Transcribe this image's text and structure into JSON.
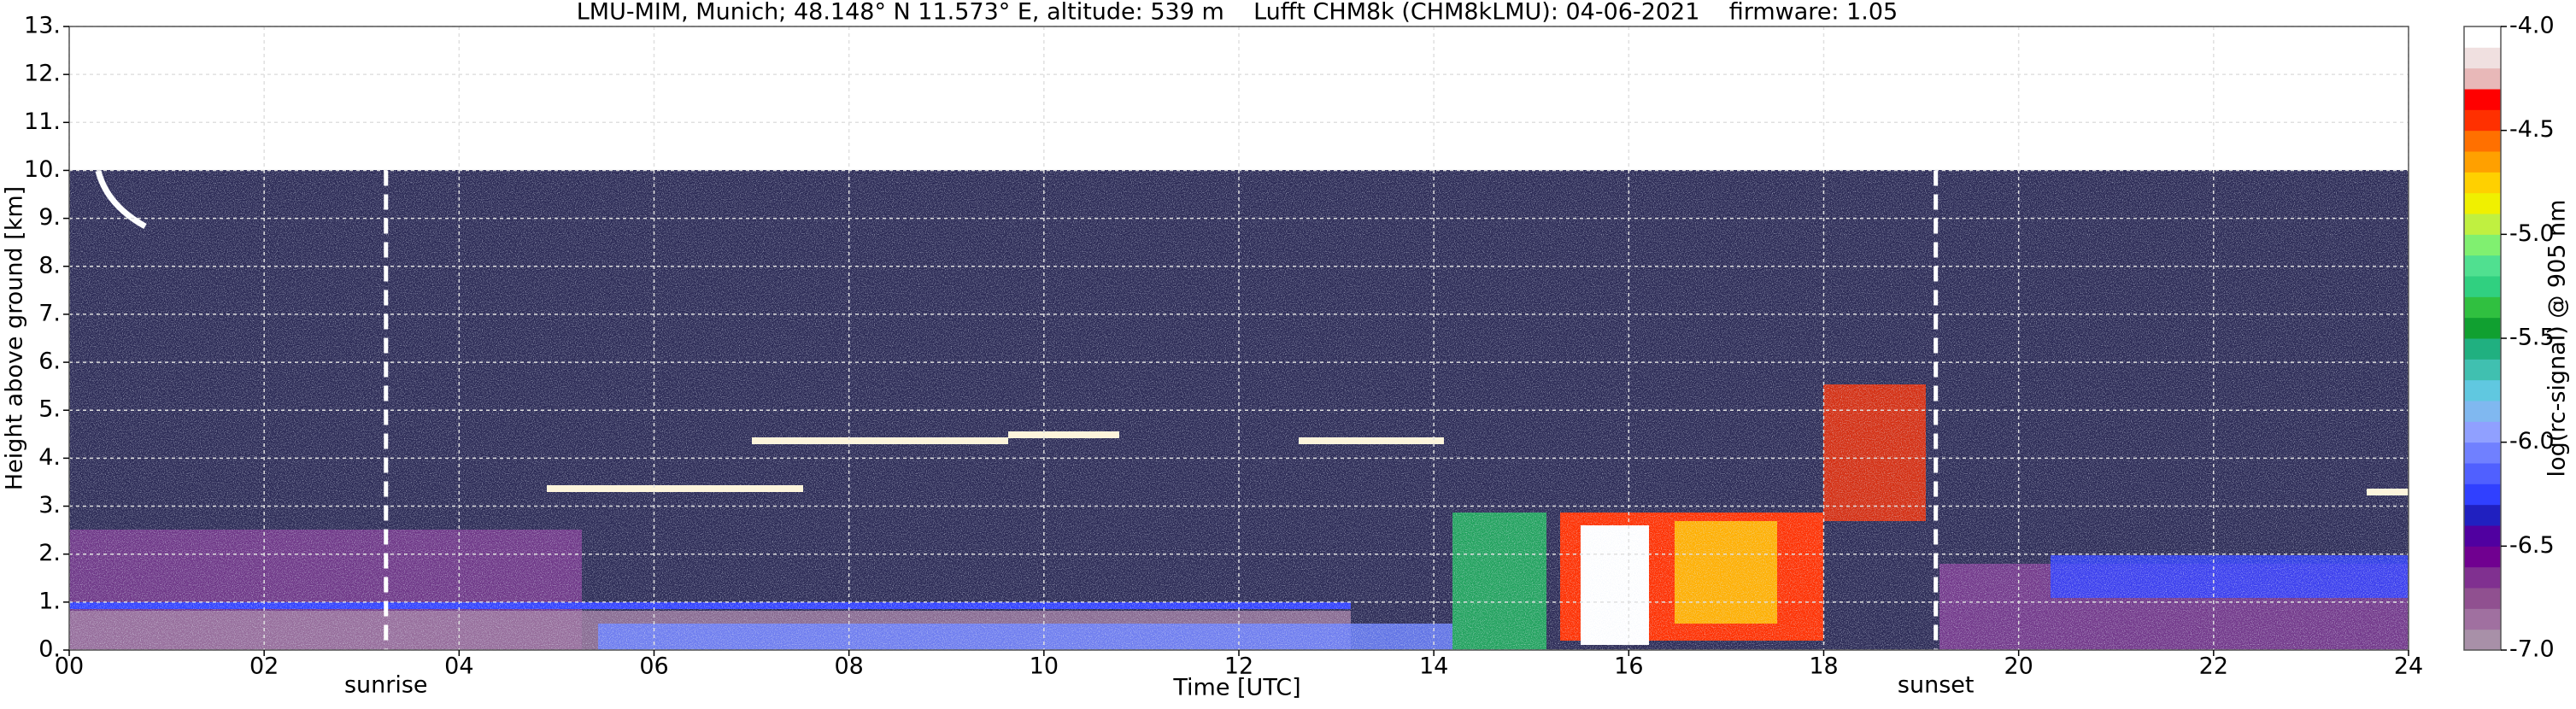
{
  "chart_data": {
    "type": "heatmap",
    "title": "LMU-MIM, Munich; 48.148° N 11.573° E, altitude: 539 m    Lufft CHM8k (CHM8kLMU): 04-06-2021    firmware: 1.05",
    "x_label": "Time [UTC]",
    "y_label": "Height above ground [km]",
    "xlim": [
      0,
      24
    ],
    "xticks": [
      {
        "value": 0,
        "label": "00"
      },
      {
        "value": 2,
        "label": "02"
      },
      {
        "value": 4,
        "label": "04"
      },
      {
        "value": 6,
        "label": "06"
      },
      {
        "value": 8,
        "label": "08"
      },
      10,
      12,
      14,
      16,
      18,
      20,
      22,
      24
    ],
    "ylim": [
      0,
      13
    ],
    "yticks": [
      {
        "value": 0,
        "label": "0."
      },
      {
        "value": 1,
        "label": "1."
      },
      {
        "value": 2,
        "label": "2."
      },
      {
        "value": 3,
        "label": "3."
      },
      {
        "value": 4,
        "label": "4."
      },
      {
        "value": 5,
        "label": "5."
      },
      {
        "value": 6,
        "label": "6."
      },
      {
        "value": 7,
        "label": "7."
      },
      {
        "value": 8,
        "label": "8."
      },
      {
        "value": 9,
        "label": "9."
      },
      {
        "value": 10,
        "label": "10."
      },
      {
        "value": 11,
        "label": "11."
      },
      {
        "value": 12,
        "label": "12."
      },
      {
        "value": 13,
        "label": "13."
      }
    ],
    "grid": true,
    "annotations": [
      {
        "text": "sunrise",
        "x": 3.25
      },
      {
        "text": "sunset",
        "x": 19.15
      }
    ],
    "colorbar": {
      "label": "log(rc-signal) @ 905 nm",
      "lim": [
        -7,
        -4
      ],
      "ticks": [
        {
          "value": -4,
          "label": "-4.0"
        },
        -4.5,
        {
          "value": -5,
          "label": "-5.0"
        },
        -5.5,
        {
          "value": -6,
          "label": "-6.0"
        },
        -6.5,
        {
          "value": -7,
          "label": "-7.0"
        }
      ],
      "colors": [
        "#a890a8",
        "#a070a0",
        "#905090",
        "#803090",
        "#700090",
        "#5000a0",
        "#2020c0",
        "#3040ff",
        "#5060ff",
        "#7080ff",
        "#90a0ff",
        "#80b8f0",
        "#60c8e0",
        "#40c0b0",
        "#20b080",
        "#10a030",
        "#30c040",
        "#30d080",
        "#50e090",
        "#80f070",
        "#c0f040",
        "#f0f000",
        "#ffd000",
        "#ffa000",
        "#ff7000",
        "#ff3000",
        "#ff0000",
        "#e8b8b8",
        "#f0e0e0",
        "#ffffff"
      ]
    }
  }
}
